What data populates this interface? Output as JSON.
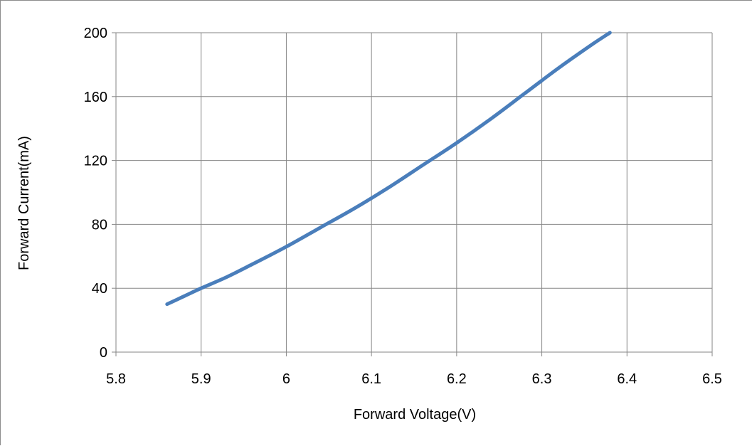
{
  "chart_data": {
    "type": "line",
    "xlabel": "Forward Voltage(V)",
    "ylabel": "Forward Current(mA)",
    "xlim": [
      5.8,
      6.5
    ],
    "ylim": [
      0,
      200
    ],
    "xticks": [
      "5.8",
      "5.9",
      "6",
      "6.1",
      "6.2",
      "6.3",
      "6.4",
      "6.5"
    ],
    "yticks": [
      "0",
      "40",
      "80",
      "120",
      "160",
      "200"
    ],
    "grid": true,
    "legend": "none",
    "series": [
      {
        "color": "#4a7ebb",
        "x": [
          5.86,
          5.88,
          5.9,
          5.93,
          5.96,
          6.0,
          6.04,
          6.08,
          6.12,
          6.16,
          6.2,
          6.24,
          6.28,
          6.32,
          6.36,
          6.38
        ],
        "y": [
          30,
          35,
          40,
          47,
          55,
          66,
          78,
          90,
          103,
          117,
          131,
          146,
          162,
          178,
          193,
          200
        ]
      }
    ]
  }
}
